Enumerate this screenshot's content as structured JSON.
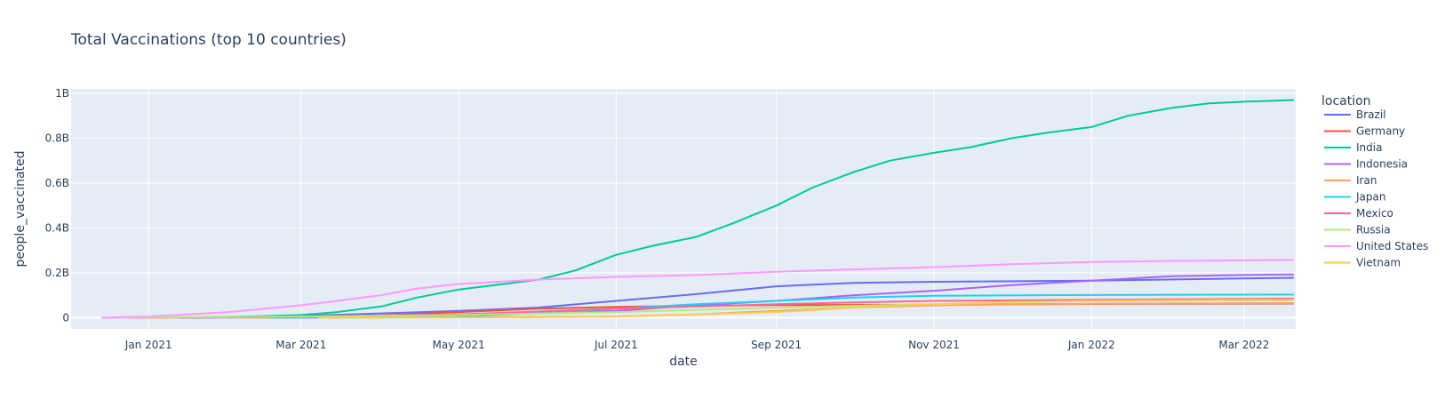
{
  "chart_data": {
    "type": "line",
    "title": "Total Vaccinations (top 10 countries)",
    "xlabel": "date",
    "ylabel": "people_vaccinated",
    "x_range": [
      "2020-12-02",
      "2022-03-21"
    ],
    "ylim": [
      -50000000,
      1020000000
    ],
    "x_ticks": [
      {
        "date": "2021-01-01",
        "label": "Jan 2021"
      },
      {
        "date": "2021-03-01",
        "label": "Mar 2021"
      },
      {
        "date": "2021-05-01",
        "label": "May 2021"
      },
      {
        "date": "2021-07-01",
        "label": "Jul 2021"
      },
      {
        "date": "2021-09-01",
        "label": "Sep 2021"
      },
      {
        "date": "2021-11-01",
        "label": "Nov 2021"
      },
      {
        "date": "2022-01-01",
        "label": "Jan 2022"
      },
      {
        "date": "2022-03-01",
        "label": "Mar 2022"
      }
    ],
    "y_ticks": [
      {
        "value": 0,
        "label": "0"
      },
      {
        "value": 200000000,
        "label": "0.2B"
      },
      {
        "value": 400000000,
        "label": "0.4B"
      },
      {
        "value": 600000000,
        "label": "0.6B"
      },
      {
        "value": 800000000,
        "label": "0.8B"
      },
      {
        "value": 1000000000,
        "label": "1B"
      }
    ],
    "grid": true,
    "legend": {
      "title": "location",
      "placement": "right"
    },
    "series": [
      {
        "name": "Brazil",
        "color": "#636efa",
        "points": [
          [
            "2021-01-18",
            0
          ],
          [
            "2021-03-01",
            8000000
          ],
          [
            "2021-05-01",
            30000000
          ],
          [
            "2021-06-01",
            45000000
          ],
          [
            "2021-07-01",
            75000000
          ],
          [
            "2021-08-01",
            105000000
          ],
          [
            "2021-09-01",
            140000000
          ],
          [
            "2021-10-01",
            155000000
          ],
          [
            "2021-11-01",
            160000000
          ],
          [
            "2022-01-01",
            165000000
          ],
          [
            "2022-03-01",
            175000000
          ],
          [
            "2022-03-20",
            178000000
          ]
        ]
      },
      {
        "name": "Germany",
        "color": "#EF553B",
        "points": [
          [
            "2020-12-27",
            0
          ],
          [
            "2021-03-01",
            5000000
          ],
          [
            "2021-04-01",
            10000000
          ],
          [
            "2021-05-01",
            25000000
          ],
          [
            "2021-06-01",
            40000000
          ],
          [
            "2021-07-01",
            48000000
          ],
          [
            "2021-08-01",
            53000000
          ],
          [
            "2021-09-01",
            56000000
          ],
          [
            "2021-11-01",
            58000000
          ],
          [
            "2022-01-01",
            61000000
          ],
          [
            "2022-03-20",
            63000000
          ]
        ]
      },
      {
        "name": "India",
        "color": "#00cc96",
        "points": [
          [
            "2021-01-16",
            0
          ],
          [
            "2021-02-15",
            7000000
          ],
          [
            "2021-03-01",
            12000000
          ],
          [
            "2021-03-15",
            25000000
          ],
          [
            "2021-04-01",
            50000000
          ],
          [
            "2021-04-15",
            90000000
          ],
          [
            "2021-05-01",
            125000000
          ],
          [
            "2021-05-15",
            145000000
          ],
          [
            "2021-06-01",
            170000000
          ],
          [
            "2021-06-15",
            210000000
          ],
          [
            "2021-07-01",
            280000000
          ],
          [
            "2021-07-15",
            320000000
          ],
          [
            "2021-08-01",
            360000000
          ],
          [
            "2021-08-15",
            420000000
          ],
          [
            "2021-09-01",
            500000000
          ],
          [
            "2021-09-15",
            580000000
          ],
          [
            "2021-10-01",
            650000000
          ],
          [
            "2021-10-15",
            700000000
          ],
          [
            "2021-11-01",
            735000000
          ],
          [
            "2021-11-15",
            760000000
          ],
          [
            "2021-12-01",
            800000000
          ],
          [
            "2021-12-15",
            825000000
          ],
          [
            "2022-01-01",
            850000000
          ],
          [
            "2022-01-15",
            900000000
          ],
          [
            "2022-02-01",
            935000000
          ],
          [
            "2022-02-15",
            955000000
          ],
          [
            "2022-03-01",
            963000000
          ],
          [
            "2022-03-20",
            970000000
          ]
        ]
      },
      {
        "name": "Indonesia",
        "color": "#ab63fa",
        "points": [
          [
            "2021-01-13",
            0
          ],
          [
            "2021-03-01",
            2000000
          ],
          [
            "2021-05-01",
            10000000
          ],
          [
            "2021-07-01",
            30000000
          ],
          [
            "2021-08-01",
            55000000
          ],
          [
            "2021-09-01",
            75000000
          ],
          [
            "2021-10-01",
            100000000
          ],
          [
            "2021-11-01",
            120000000
          ],
          [
            "2021-12-01",
            145000000
          ],
          [
            "2022-01-01",
            165000000
          ],
          [
            "2022-02-01",
            185000000
          ],
          [
            "2022-03-01",
            190000000
          ],
          [
            "2022-03-20",
            193000000
          ]
        ]
      },
      {
        "name": "Iran",
        "color": "#FFA15A",
        "points": [
          [
            "2021-02-09",
            0
          ],
          [
            "2021-05-01",
            2000000
          ],
          [
            "2021-07-01",
            5000000
          ],
          [
            "2021-08-01",
            15000000
          ],
          [
            "2021-09-01",
            30000000
          ],
          [
            "2021-10-01",
            45000000
          ],
          [
            "2021-11-01",
            55000000
          ],
          [
            "2022-01-01",
            62000000
          ],
          [
            "2022-03-20",
            65000000
          ]
        ]
      },
      {
        "name": "Japan",
        "color": "#19d3f3",
        "points": [
          [
            "2021-02-17",
            0
          ],
          [
            "2021-04-01",
            1000000
          ],
          [
            "2021-05-01",
            5000000
          ],
          [
            "2021-06-01",
            20000000
          ],
          [
            "2021-07-01",
            40000000
          ],
          [
            "2021-08-01",
            60000000
          ],
          [
            "2021-09-01",
            75000000
          ],
          [
            "2021-10-01",
            90000000
          ],
          [
            "2021-11-01",
            98000000
          ],
          [
            "2022-01-01",
            101000000
          ],
          [
            "2022-03-20",
            103000000
          ]
        ]
      },
      {
        "name": "Mexico",
        "color": "#FF6692",
        "points": [
          [
            "2020-12-24",
            0
          ],
          [
            "2021-03-01",
            3000000
          ],
          [
            "2021-05-01",
            15000000
          ],
          [
            "2021-07-01",
            40000000
          ],
          [
            "2021-09-01",
            60000000
          ],
          [
            "2021-10-01",
            68000000
          ],
          [
            "2021-11-01",
            75000000
          ],
          [
            "2022-01-01",
            80000000
          ],
          [
            "2022-03-20",
            85000000
          ]
        ]
      },
      {
        "name": "Russia",
        "color": "#B6E880",
        "points": [
          [
            "2020-12-15",
            0
          ],
          [
            "2021-03-01",
            5000000
          ],
          [
            "2021-05-01",
            12000000
          ],
          [
            "2021-07-01",
            25000000
          ],
          [
            "2021-09-01",
            45000000
          ],
          [
            "2021-11-01",
            60000000
          ],
          [
            "2022-01-01",
            75000000
          ],
          [
            "2022-03-20",
            78000000
          ]
        ]
      },
      {
        "name": "United States",
        "color": "#FF97FF",
        "points": [
          [
            "2020-12-14",
            0
          ],
          [
            "2021-01-01",
            5000000
          ],
          [
            "2021-02-01",
            25000000
          ],
          [
            "2021-03-01",
            55000000
          ],
          [
            "2021-03-15",
            75000000
          ],
          [
            "2021-04-01",
            100000000
          ],
          [
            "2021-04-15",
            130000000
          ],
          [
            "2021-05-01",
            150000000
          ],
          [
            "2021-06-01",
            170000000
          ],
          [
            "2021-07-01",
            182000000
          ],
          [
            "2021-08-01",
            190000000
          ],
          [
            "2021-09-01",
            205000000
          ],
          [
            "2021-10-01",
            215000000
          ],
          [
            "2021-11-01",
            225000000
          ],
          [
            "2021-12-01",
            238000000
          ],
          [
            "2022-01-01",
            248000000
          ],
          [
            "2022-02-01",
            253000000
          ],
          [
            "2022-03-20",
            257000000
          ]
        ]
      },
      {
        "name": "Vietnam",
        "color": "#FECB52",
        "points": [
          [
            "2021-03-08",
            0
          ],
          [
            "2021-06-01",
            2000000
          ],
          [
            "2021-07-01",
            5000000
          ],
          [
            "2021-08-01",
            15000000
          ],
          [
            "2021-09-01",
            25000000
          ],
          [
            "2021-10-01",
            45000000
          ],
          [
            "2021-11-01",
            60000000
          ],
          [
            "2021-12-01",
            70000000
          ],
          [
            "2022-01-01",
            75000000
          ],
          [
            "2022-03-20",
            80000000
          ]
        ]
      }
    ]
  }
}
